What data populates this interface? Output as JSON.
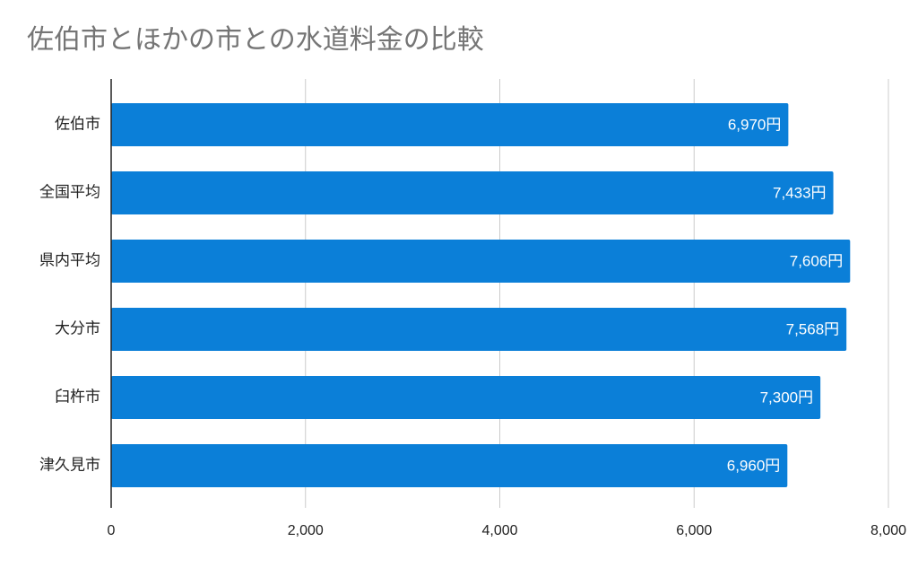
{
  "chart_data": {
    "type": "bar",
    "orientation": "horizontal",
    "title": "佐伯市とほかの市との水道料金の比較",
    "categories": [
      "佐伯市",
      "全国平均",
      "県内平均",
      "大分市",
      "臼杵市",
      "津久見市"
    ],
    "values": [
      6970,
      7433,
      7606,
      7568,
      7300,
      6960
    ],
    "value_labels": [
      "6,970円",
      "7,433円",
      "7,606円",
      "7,568円",
      "7,300円",
      "6,960円"
    ],
    "color": "#0b7fd8",
    "xlim": [
      0,
      8000
    ],
    "xticks": [
      0,
      {
        "value": 2000,
        "label": "2,000"
      },
      {
        "value": 4000,
        "label": "4,000"
      },
      {
        "value": 6000,
        "label": "6,000"
      },
      {
        "value": 8000,
        "label": "8,000"
      }
    ],
    "grid": true
  }
}
